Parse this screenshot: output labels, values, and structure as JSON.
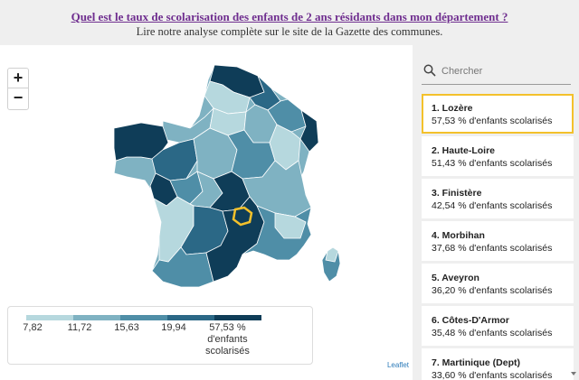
{
  "header": {
    "link": "Quel est le taux de scolarisation des enfants de 2 ans résidants dans mon département ?",
    "subtitle": "Lire notre analyse complète sur le site de la Gazette des communes."
  },
  "map": {
    "zoom_in": "+",
    "zoom_out": "−",
    "attribution": "Leaflet",
    "highlight_color": "#f3c12b",
    "legend": {
      "colors": [
        "#b6d8de",
        "#7fb2c2",
        "#4f8ea7",
        "#2b6886",
        "#0f3d58"
      ],
      "ticks": [
        "7,82",
        "11,72",
        "15,63",
        "19,94"
      ],
      "last_value": "57,53 %",
      "last_label_1": "d'enfants",
      "last_label_2": "scolarisés"
    }
  },
  "sidebar": {
    "search_placeholder": "Chercher",
    "items": [
      {
        "title": "1. Lozère",
        "value": "57,53 % d'enfants scolarisés"
      },
      {
        "title": "2. Haute-Loire",
        "value": "51,43 % d'enfants scolarisés"
      },
      {
        "title": "3. Finistère",
        "value": "42,54 % d'enfants scolarisés"
      },
      {
        "title": "4. Morbihan",
        "value": "37,68 % d'enfants scolarisés"
      },
      {
        "title": "5. Aveyron",
        "value": "36,20 % d'enfants scolarisés"
      },
      {
        "title": "6. Côtes-D'Armor",
        "value": "35,48 % d'enfants scolarisés"
      },
      {
        "title": "7. Martinique (Dept)",
        "value": "33,60 % d'enfants scolarisés"
      }
    ]
  }
}
